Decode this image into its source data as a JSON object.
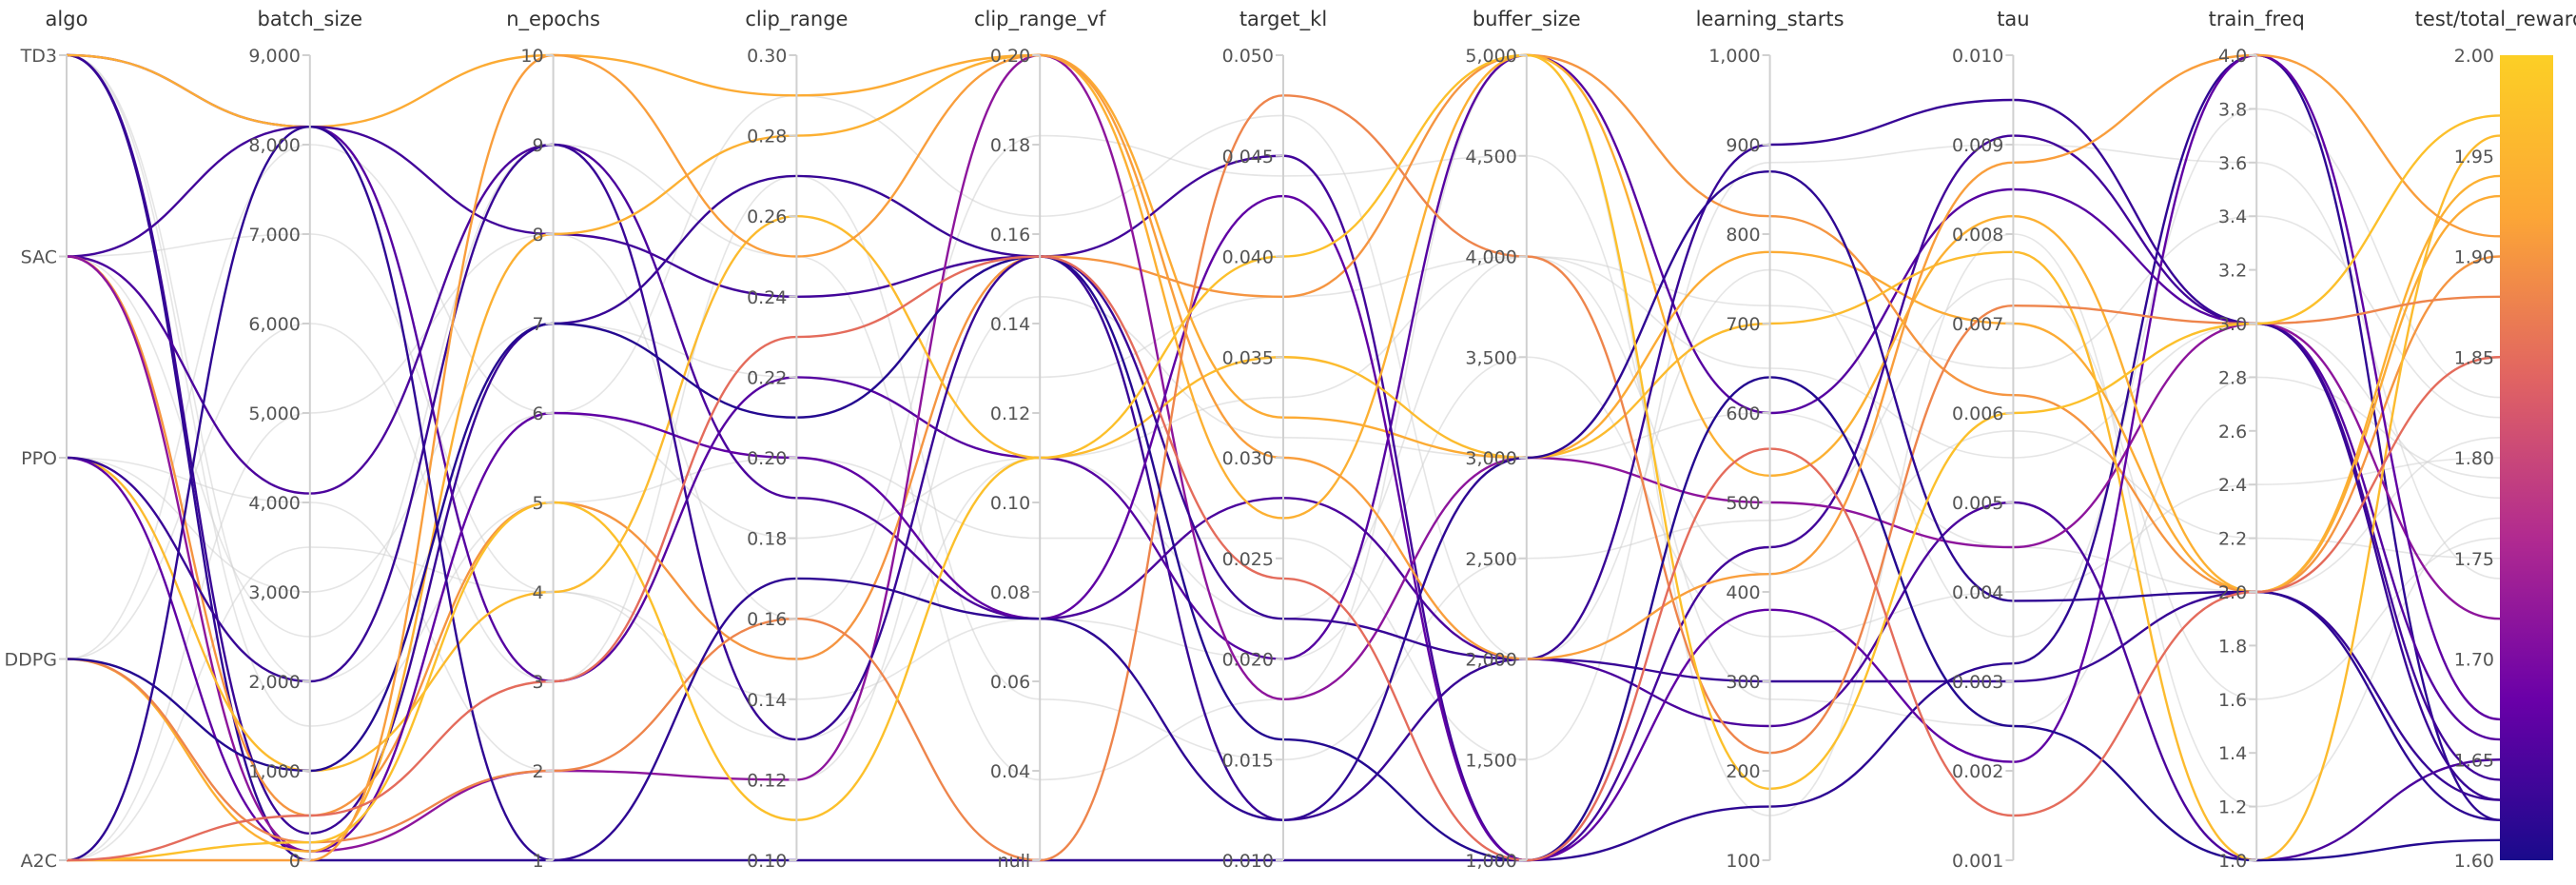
{
  "chart_data": {
    "type": "parallel-coordinates",
    "colorbar": {
      "metric": "test/total_reward",
      "min": 1.6,
      "max": 2.0,
      "colors": [
        "#1a0a8c",
        "#6a00a8",
        "#b12a90",
        "#e16462",
        "#fca636",
        "#fccf25"
      ]
    },
    "axes": [
      {
        "name": "algo",
        "type": "categorical",
        "categories": [
          "A2C",
          "DDPG",
          "PPO",
          "SAC",
          "TD3"
        ],
        "tick_labels": [
          "TD3",
          "SAC",
          "PPO",
          "DDPG",
          "A2C"
        ]
      },
      {
        "name": "batch_size",
        "type": "numeric",
        "range": [
          0,
          9000
        ],
        "tick_labels": [
          "9,000",
          "8,000",
          "7,000",
          "6,000",
          "5,000",
          "4,000",
          "3,000",
          "2,000",
          "1,000",
          "0"
        ]
      },
      {
        "name": "n_epochs",
        "type": "numeric",
        "range": [
          1,
          10
        ],
        "tick_labels": [
          "10",
          "9",
          "8",
          "7",
          "6",
          "5",
          "4",
          "3",
          "2",
          "1"
        ]
      },
      {
        "name": "clip_range",
        "type": "numeric",
        "range": [
          0.1,
          0.3
        ],
        "tick_labels": [
          "0.30",
          "0.28",
          "0.26",
          "0.24",
          "0.22",
          "0.20",
          "0.18",
          "0.16",
          "0.14",
          "0.12",
          "0.10"
        ]
      },
      {
        "name": "clip_range_vf",
        "type": "numeric",
        "range": [
          0,
          0.2
        ],
        "tick_labels": [
          "0.20",
          "0.18",
          "0.16",
          "0.14",
          "0.12",
          "0.10",
          "0.08",
          "0.06",
          "0.04",
          "null"
        ]
      },
      {
        "name": "target_kl",
        "type": "numeric",
        "range": [
          0.01,
          0.05
        ],
        "tick_labels": [
          "0.050",
          "0.045",
          "0.040",
          "0.035",
          "0.030",
          "0.025",
          "0.020",
          "0.015",
          "0.010"
        ]
      },
      {
        "name": "buffer_size",
        "type": "numeric",
        "range": [
          1000,
          5000
        ],
        "tick_labels": [
          "5,000",
          "4,500",
          "4,000",
          "3,500",
          "3,000",
          "2,500",
          "2,000",
          "1,500",
          "1,000"
        ]
      },
      {
        "name": "learning_starts",
        "type": "numeric",
        "range": [
          100,
          1000
        ],
        "tick_labels": [
          "1,000",
          "900",
          "800",
          "700",
          "600",
          "500",
          "400",
          "300",
          "200",
          "100"
        ]
      },
      {
        "name": "tau",
        "type": "numeric",
        "range": [
          0.001,
          0.01
        ],
        "tick_labels": [
          "0.010",
          "0.009",
          "0.008",
          "0.007",
          "0.006",
          "0.005",
          "0.004",
          "0.003",
          "0.002",
          "0.001"
        ]
      },
      {
        "name": "train_freq",
        "type": "numeric",
        "range": [
          1.0,
          4.0
        ],
        "tick_labels": [
          "4.0",
          "3.8",
          "3.6",
          "3.4",
          "3.2",
          "3.0",
          "2.8",
          "2.6",
          "2.4",
          "2.2",
          "2.0",
          "1.8",
          "1.6",
          "1.4",
          "1.2",
          "1.0"
        ]
      },
      {
        "name": "test/total_reward",
        "type": "numeric",
        "range": [
          1.6,
          2.0
        ],
        "tick_labels": [
          "2.00",
          "1.95",
          "1.90",
          "1.85",
          "1.80",
          "1.75",
          "1.70",
          "1.65",
          "1.60"
        ]
      }
    ],
    "runs": [
      {
        "algo": "TD3",
        "batch_size": 0,
        "n_epochs": 1,
        "clip_range": 0.1,
        "clip_range_vf": 0.0,
        "target_kl": 0.01,
        "buffer_size": 1000,
        "learning_starts": 160,
        "tau": 0.0032,
        "train_freq": 4.0,
        "test/total_reward": 1.62,
        "colored": true
      },
      {
        "algo": "TD3",
        "batch_size": 300,
        "n_epochs": 7,
        "clip_range": 0.27,
        "clip_range_vf": 0.15,
        "target_kl": 0.012,
        "buffer_size": 2000,
        "learning_starts": 300,
        "tau": 0.003,
        "train_freq": 2.0,
        "test/total_reward": 1.63,
        "colored": true
      },
      {
        "algo": "TD3",
        "batch_size": 8200,
        "n_epochs": 3,
        "clip_range": 0.22,
        "clip_range_vf": 0.1,
        "target_kl": 0.02,
        "buffer_size": 5000,
        "learning_starts": 600,
        "tau": 0.0085,
        "train_freq": 3.0,
        "test/total_reward": 1.66,
        "colored": true
      },
      {
        "algo": "TD3",
        "batch_size": 8200,
        "n_epochs": 10,
        "clip_range": 0.29,
        "clip_range_vf": 0.2,
        "target_kl": 0.032,
        "buffer_size": 3000,
        "learning_starts": 780,
        "tau": 0.007,
        "train_freq": 2.0,
        "test/total_reward": 1.93,
        "colored": true
      },
      {
        "algo": "SAC",
        "batch_size": 8200,
        "n_epochs": 8,
        "clip_range": 0.24,
        "clip_range_vf": 0.15,
        "target_kl": 0.045,
        "buffer_size": 1000,
        "learning_starts": 450,
        "tau": 0.0091,
        "train_freq": 3.0,
        "test/total_reward": 1.64,
        "colored": true
      },
      {
        "algo": "SAC",
        "batch_size": 4100,
        "n_epochs": 9,
        "clip_range": 0.19,
        "clip_range_vf": 0.06,
        "target_kl": 0.028,
        "buffer_size": 2000,
        "learning_starts": 250,
        "tau": 0.005,
        "train_freq": 1.0,
        "test/total_reward": 1.65,
        "colored": true
      },
      {
        "algo": "SAC",
        "batch_size": 500,
        "n_epochs": 5,
        "clip_range": 0.15,
        "clip_range_vf": 0.15,
        "target_kl": 0.038,
        "buffer_size": 5000,
        "learning_starts": 820,
        "tau": 0.0062,
        "train_freq": 2.0,
        "test/total_reward": 1.9,
        "colored": true
      },
      {
        "algo": "SAC",
        "batch_size": 100,
        "n_epochs": 2,
        "clip_range": 0.12,
        "clip_range_vf": 0.2,
        "target_kl": 0.018,
        "buffer_size": 3000,
        "learning_starts": 500,
        "tau": 0.0045,
        "train_freq": 3.0,
        "test/total_reward": 1.72,
        "colored": true
      },
      {
        "algo": "PPO",
        "batch_size": 1000,
        "n_epochs": 4,
        "clip_range": 0.26,
        "clip_range_vf": 0.1,
        "target_kl": 0.035,
        "buffer_size": 3000,
        "learning_starts": 700,
        "tau": 0.0078,
        "train_freq": 1.0,
        "test/total_reward": 1.96,
        "colored": true
      },
      {
        "algo": "PPO",
        "batch_size": 100,
        "n_epochs": 6,
        "clip_range": 0.2,
        "clip_range_vf": 0.06,
        "target_kl": 0.043,
        "buffer_size": 1000,
        "learning_starts": 380,
        "tau": 0.0021,
        "train_freq": 4.0,
        "test/total_reward": 1.67,
        "colored": true
      },
      {
        "algo": "PPO",
        "batch_size": 2000,
        "n_epochs": 9,
        "clip_range": 0.13,
        "clip_range_vf": 0.15,
        "target_kl": 0.022,
        "buffer_size": 2000,
        "learning_starts": 900,
        "tau": 0.0095,
        "train_freq": 3.0,
        "test/total_reward": 1.63,
        "colored": true
      },
      {
        "algo": "DDPG",
        "batch_size": 100,
        "n_epochs": 8,
        "clip_range": 0.28,
        "clip_range_vf": 0.2,
        "target_kl": 0.027,
        "buffer_size": 5000,
        "learning_starts": 530,
        "tau": 0.0082,
        "train_freq": 2.0,
        "test/total_reward": 1.94,
        "colored": true
      },
      {
        "algo": "DDPG",
        "batch_size": 200,
        "n_epochs": 2,
        "clip_range": 0.16,
        "clip_range_vf": 0.0,
        "target_kl": 0.048,
        "buffer_size": 4000,
        "learning_starts": 220,
        "tau": 0.0072,
        "train_freq": 3.0,
        "test/total_reward": 1.88,
        "colored": true
      },
      {
        "algo": "DDPG",
        "batch_size": 1000,
        "n_epochs": 7,
        "clip_range": 0.21,
        "clip_range_vf": 0.15,
        "target_kl": 0.016,
        "buffer_size": 1000,
        "learning_starts": 640,
        "tau": 0.0025,
        "train_freq": 1.0,
        "test/total_reward": 1.61,
        "colored": true
      },
      {
        "algo": "A2C",
        "batch_size": 0,
        "n_epochs": 10,
        "clip_range": 0.25,
        "clip_range_vf": 0.2,
        "target_kl": 0.03,
        "buffer_size": 2000,
        "learning_starts": 420,
        "tau": 0.0088,
        "train_freq": 4.0,
        "test/total_reward": 1.91,
        "colored": true
      },
      {
        "algo": "A2C",
        "batch_size": 8200,
        "n_epochs": 1,
        "clip_range": 0.17,
        "clip_range_vf": 0.06,
        "target_kl": 0.012,
        "buffer_size": 3000,
        "learning_starts": 870,
        "tau": 0.0039,
        "train_freq": 2.0,
        "test/total_reward": 1.62,
        "colored": true
      },
      {
        "algo": "A2C",
        "batch_size": 200,
        "n_epochs": 5,
        "clip_range": 0.11,
        "clip_range_vf": 0.1,
        "target_kl": 0.04,
        "buffer_size": 5000,
        "learning_starts": 180,
        "tau": 0.006,
        "train_freq": 3.0,
        "test/total_reward": 1.97,
        "colored": true
      },
      {
        "algo": "A2C",
        "batch_size": 500,
        "n_epochs": 3,
        "clip_range": 0.23,
        "clip_range_vf": 0.15,
        "target_kl": 0.024,
        "buffer_size": 1000,
        "learning_starts": 560,
        "tau": 0.0015,
        "train_freq": 2.0,
        "test/total_reward": 1.85,
        "colored": true
      },
      {
        "algo": "TD3",
        "batch_size": 2000,
        "n_epochs": 6,
        "clip_range": 0.18,
        "clip_range_vf": 0.1,
        "target_kl": 0.033,
        "buffer_size": 4000,
        "learning_starts": 650,
        "tau": 0.0055,
        "train_freq": 3.0,
        "test/total_reward": 1.78,
        "colored": false
      },
      {
        "algo": "SAC",
        "batch_size": 7000,
        "n_epochs": 4,
        "clip_range": 0.14,
        "clip_range_vf": 0.06,
        "target_kl": 0.02,
        "buffer_size": 3500,
        "learning_starts": 350,
        "tau": 0.004,
        "train_freq": 2.4,
        "test/total_reward": 1.8,
        "colored": false
      },
      {
        "algo": "PPO",
        "batch_size": 3000,
        "n_epochs": 7,
        "clip_range": 0.22,
        "clip_range_vf": 0.12,
        "target_kl": 0.038,
        "buffer_size": 4000,
        "learning_starts": 720,
        "tau": 0.0065,
        "train_freq": 3.4,
        "test/total_reward": 1.82,
        "colored": false
      },
      {
        "algo": "DDPG",
        "batch_size": 6000,
        "n_epochs": 3,
        "clip_range": 0.27,
        "clip_range_vf": 0.04,
        "target_kl": 0.015,
        "buffer_size": 2500,
        "learning_starts": 480,
        "tau": 0.0075,
        "train_freq": 1.6,
        "test/total_reward": 1.76,
        "colored": false
      },
      {
        "algo": "A2C",
        "batch_size": 5000,
        "n_epochs": 8,
        "clip_range": 0.16,
        "clip_range_vf": 0.18,
        "target_kl": 0.044,
        "buffer_size": 4500,
        "learning_starts": 280,
        "tau": 0.0025,
        "train_freq": 2.8,
        "test/total_reward": 1.79,
        "colored": false
      },
      {
        "algo": "TD3",
        "batch_size": 1500,
        "n_epochs": 5,
        "clip_range": 0.2,
        "clip_range_vf": 0.08,
        "target_kl": 0.026,
        "buffer_size": 1500,
        "learning_starts": 880,
        "tau": 0.009,
        "train_freq": 3.6,
        "test/total_reward": 1.74,
        "colored": false
      },
      {
        "algo": "PPO",
        "batch_size": 4000,
        "n_epochs": 2,
        "clip_range": 0.12,
        "clip_range_vf": 0.14,
        "target_kl": 0.031,
        "buffer_size": 3000,
        "learning_starts": 600,
        "tau": 0.0045,
        "train_freq": 2.0,
        "test/total_reward": 1.81,
        "colored": false
      },
      {
        "algo": "SAC",
        "batch_size": 2500,
        "n_epochs": 9,
        "clip_range": 0.25,
        "clip_range_vf": 0.02,
        "target_kl": 0.018,
        "buffer_size": 5000,
        "learning_starts": 150,
        "tau": 0.008,
        "train_freq": 1.2,
        "test/total_reward": 1.77,
        "colored": false
      },
      {
        "algo": "DDPG",
        "batch_size": 8000,
        "n_epochs": 6,
        "clip_range": 0.29,
        "clip_range_vf": 0.16,
        "target_kl": 0.047,
        "buffer_size": 2000,
        "learning_starts": 760,
        "tau": 0.0035,
        "train_freq": 3.8,
        "test/total_reward": 1.83,
        "colored": false
      },
      {
        "algo": "A2C",
        "batch_size": 3500,
        "n_epochs": 4,
        "clip_range": 0.13,
        "clip_range_vf": 0.1,
        "target_kl": 0.022,
        "buffer_size": 4000,
        "learning_starts": 420,
        "tau": 0.0058,
        "train_freq": 2.2,
        "test/total_reward": 1.75,
        "colored": false
      }
    ]
  }
}
